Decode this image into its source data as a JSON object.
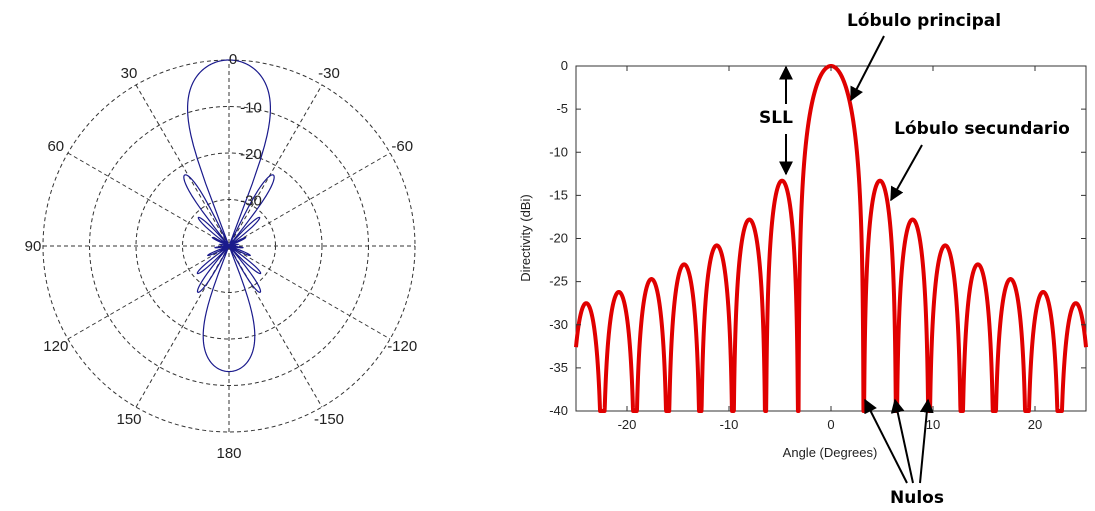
{
  "chart_data": [
    {
      "type": "polar",
      "angle_labels": [
        "0",
        "30",
        "-30",
        "60",
        "-60",
        "90",
        "120",
        "-120",
        "150",
        "-150",
        "180"
      ],
      "radial_labels": [
        "-10",
        "-20",
        "-30"
      ],
      "rlim_db": [
        -40,
        0
      ],
      "grid": true,
      "series_color": "#1a1a8c",
      "pattern": {
        "main_lobe": {
          "half_width_deg": 21,
          "peak_db": 0
        },
        "side_lobes": [
          {
            "angle_deg": 32,
            "peak_db": -22
          },
          {
            "angle_deg": 47,
            "peak_db": -31
          },
          {
            "angle_deg": 63,
            "peak_db": -36
          },
          {
            "angle_deg": 80,
            "peak_db": -38
          },
          {
            "angle_deg": 97,
            "peak_db": -37
          },
          {
            "angle_deg": 114,
            "peak_db": -35
          },
          {
            "angle_deg": 131,
            "peak_db": -31
          },
          {
            "angle_deg": 146,
            "peak_db": -28
          }
        ],
        "back_lobe": {
          "half_width_deg": 22,
          "peak_db": -13
        }
      }
    },
    {
      "type": "line",
      "xlabel": "Angle (Degrees)",
      "ylabel": "Directivity (dBi)",
      "xlim": [
        -25,
        25
      ],
      "ylim": [
        -40,
        0
      ],
      "xticks": [
        -20,
        -10,
        0,
        10,
        20
      ],
      "yticks": [
        0,
        -5,
        -10,
        -15,
        -20,
        -25,
        -30,
        -35,
        -40
      ],
      "series_color": "#e00000",
      "null_spacing_deg": 3.2,
      "sidelobe_peaks_db": [
        -13.3,
        -17.8,
        -20.8,
        -23.0,
        -24.7,
        -26.2,
        -27.5
      ],
      "main_lobe_peak_db": 0
    }
  ],
  "annotations": {
    "main_lobe": "Lóbulo principal",
    "side_lobe": "Lóbulo secundario",
    "sll": "SLL",
    "nulls": "Nulos"
  }
}
